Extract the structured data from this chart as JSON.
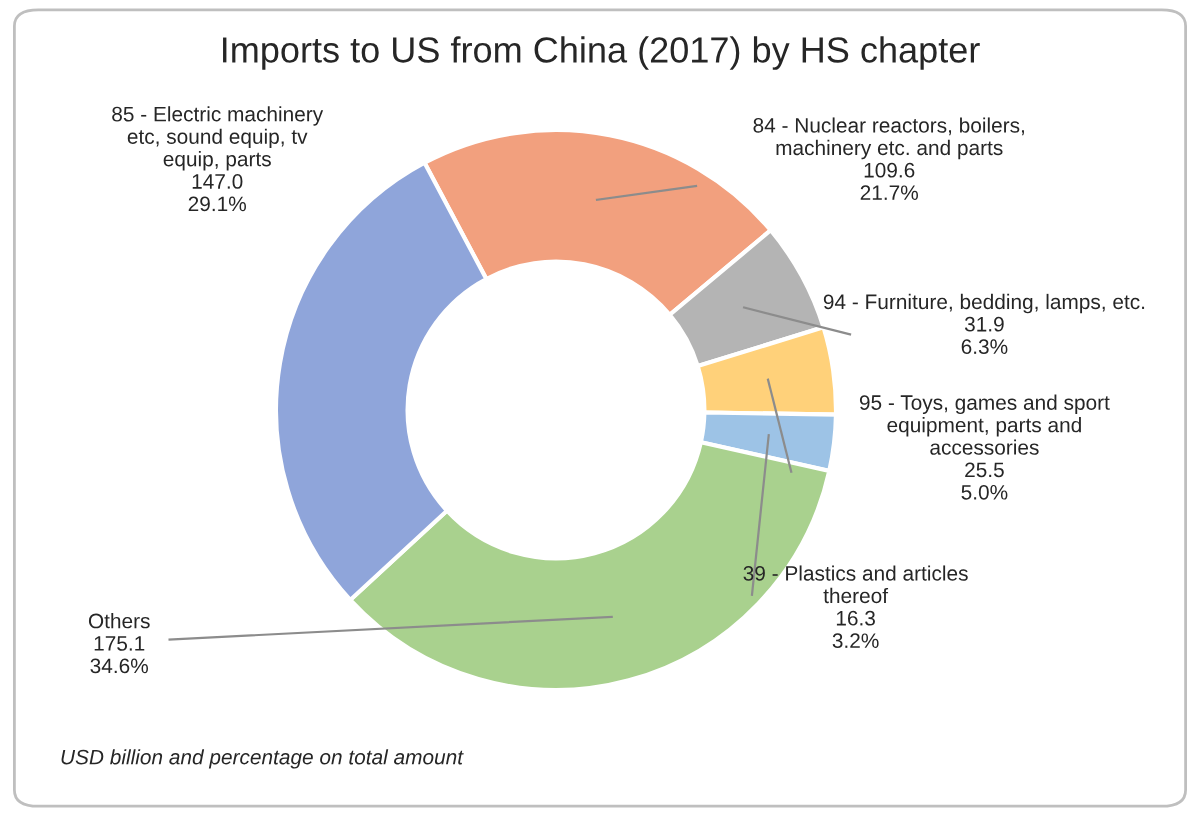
{
  "chart_data": {
    "type": "donut",
    "title": "Imports to US from China (2017) by HS chapter",
    "categories": [
      "84 - Nuclear reactors, boilers,\nmachinery etc. and parts",
      "94 - Furniture, bedding, lamps, etc.",
      "95 - Toys, games and sport\nequipment, parts and\naccessories",
      "39 - Plastics and articles\nthereof",
      "Others",
      "85 - Electric machinery\netc, sound equip, tv\nequip, parts"
    ],
    "values": [
      109.6,
      31.9,
      25.5,
      16.3,
      175.1,
      147.0
    ],
    "value_labels": [
      "109.6\n21.7%",
      "31.9\n6.3%",
      "25.5\n5.0%",
      "16.3\n3.2%",
      "175.1\n34.6%",
      "147.0\n29.1%"
    ],
    "colors": [
      "#f2a07e",
      "#b4b4b4",
      "#ffd17a",
      "#9dc3e6",
      "#a9d18e",
      "#8fa5da"
    ],
    "annotations": [
      "USD billion and percentage on total amount"
    ],
    "legend": false
  }
}
